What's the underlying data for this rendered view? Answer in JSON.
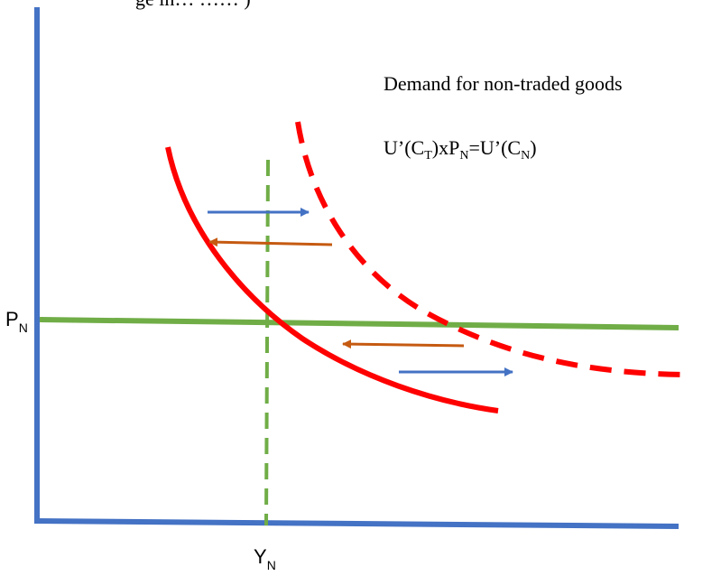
{
  "diagram": {
    "header_fragment": "ge in…    ……    )",
    "curve_title": "Demand for non-traded goods",
    "equation": {
      "u1": "U’(C",
      "sub_t": "T",
      "mid": ")xP",
      "sub_n1": "N",
      "eq": "=U’(C",
      "sub_n2": "N",
      "close": ")"
    },
    "price_label": {
      "main": "P",
      "sub": "N"
    },
    "output_label": {
      "main": "Y",
      "sub": "N"
    },
    "colors": {
      "axis": "#4472C4",
      "demand_curve": "#FF0000",
      "supply_lines": "#70AD47",
      "arrow_blue": "#4472C4",
      "arrow_orange": "#C55A11"
    }
  }
}
